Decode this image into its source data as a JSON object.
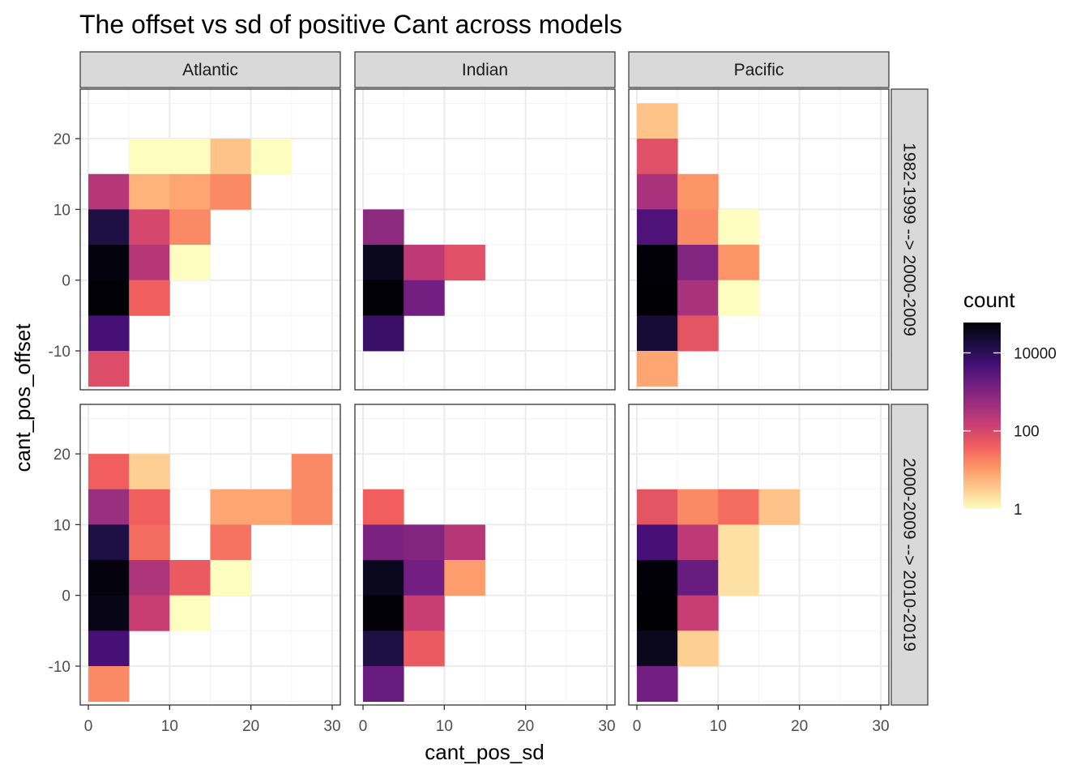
{
  "chart_data": {
    "type": "heatmap",
    "title": "The offset vs sd of positive Cant across models",
    "xlabel": "cant_pos_sd",
    "ylabel": "cant_pos_offset",
    "columns": [
      "Atlantic",
      "Indian",
      "Pacific"
    ],
    "rows": [
      "1982-1999 --> 2000-2009",
      "2000-2009 --> 2010-2019"
    ],
    "xlim": [
      -1,
      31
    ],
    "ylim": [
      -15.5,
      27
    ],
    "x_ticks": [
      0,
      10,
      20,
      30
    ],
    "y_ticks": [
      -10,
      0,
      10,
      20
    ],
    "x_tick_labels": [
      "0",
      "10",
      "20",
      "30"
    ],
    "y_tick_labels": [
      "-10",
      "0",
      "10",
      "20"
    ],
    "bin_width": 5,
    "legend": {
      "title": "count",
      "scale": "log10",
      "min": 1,
      "max": 60000,
      "breaks": [
        1,
        100,
        10000
      ],
      "break_labels": [
        "1",
        "100",
        "10000"
      ],
      "palette": [
        "#fcfdbf",
        "#feca8d",
        "#fd9668",
        "#f1605d",
        "#cd4071",
        "#9e2f7f",
        "#721f81",
        "#440f76",
        "#180f3d",
        "#000004"
      ]
    },
    "panels": [
      {
        "row": 0,
        "col": 0,
        "cells": [
          {
            "x": 0,
            "y": 10,
            "count": 250
          },
          {
            "x": 0,
            "y": 5,
            "count": 15000
          },
          {
            "x": 0,
            "y": 0,
            "count": 50000
          },
          {
            "x": 0,
            "y": -5,
            "count": 55000
          },
          {
            "x": 0,
            "y": -10,
            "count": 5000
          },
          {
            "x": 0,
            "y": -15,
            "count": 80
          },
          {
            "x": 5,
            "y": 15,
            "count": 1
          },
          {
            "x": 5,
            "y": 10,
            "count": 6
          },
          {
            "x": 5,
            "y": 5,
            "count": 100
          },
          {
            "x": 5,
            "y": 0,
            "count": 250
          },
          {
            "x": 5,
            "y": -5,
            "count": 40
          },
          {
            "x": 10,
            "y": 15,
            "count": 1
          },
          {
            "x": 10,
            "y": 10,
            "count": 8
          },
          {
            "x": 10,
            "y": 5,
            "count": 15
          },
          {
            "x": 10,
            "y": 0,
            "count": 1
          },
          {
            "x": 15,
            "y": 15,
            "count": 4
          },
          {
            "x": 15,
            "y": 10,
            "count": 15
          },
          {
            "x": 20,
            "y": 15,
            "count": 1
          }
        ]
      },
      {
        "row": 0,
        "col": 1,
        "cells": [
          {
            "x": 0,
            "y": 5,
            "count": 700
          },
          {
            "x": 0,
            "y": 0,
            "count": 35000
          },
          {
            "x": 0,
            "y": -5,
            "count": 55000
          },
          {
            "x": 0,
            "y": -10,
            "count": 7000
          },
          {
            "x": 5,
            "y": 0,
            "count": 200
          },
          {
            "x": 5,
            "y": -5,
            "count": 1500
          },
          {
            "x": 10,
            "y": 0,
            "count": 70
          }
        ]
      },
      {
        "row": 0,
        "col": 2,
        "cells": [
          {
            "x": 0,
            "y": 20,
            "count": 4
          },
          {
            "x": 0,
            "y": 15,
            "count": 70
          },
          {
            "x": 0,
            "y": 10,
            "count": 350
          },
          {
            "x": 0,
            "y": 5,
            "count": 4000
          },
          {
            "x": 0,
            "y": 0,
            "count": 55000
          },
          {
            "x": 0,
            "y": -5,
            "count": 60000
          },
          {
            "x": 0,
            "y": -10,
            "count": 20000
          },
          {
            "x": 0,
            "y": -15,
            "count": 8
          },
          {
            "x": 5,
            "y": 10,
            "count": 12
          },
          {
            "x": 5,
            "y": 5,
            "count": 15
          },
          {
            "x": 5,
            "y": 0,
            "count": 1000
          },
          {
            "x": 5,
            "y": -5,
            "count": 350
          },
          {
            "x": 5,
            "y": -10,
            "count": 60
          },
          {
            "x": 10,
            "y": 5,
            "count": 1
          },
          {
            "x": 10,
            "y": 0,
            "count": 12
          },
          {
            "x": 10,
            "y": -5,
            "count": 1
          }
        ]
      },
      {
        "row": 1,
        "col": 0,
        "cells": [
          {
            "x": 0,
            "y": 15,
            "count": 40
          },
          {
            "x": 0,
            "y": 10,
            "count": 500
          },
          {
            "x": 0,
            "y": 5,
            "count": 15000
          },
          {
            "x": 0,
            "y": 0,
            "count": 50000
          },
          {
            "x": 0,
            "y": -5,
            "count": 40000
          },
          {
            "x": 0,
            "y": -10,
            "count": 5000
          },
          {
            "x": 0,
            "y": -15,
            "count": 15
          },
          {
            "x": 5,
            "y": 15,
            "count": 3
          },
          {
            "x": 5,
            "y": 10,
            "count": 40
          },
          {
            "x": 5,
            "y": 5,
            "count": 30
          },
          {
            "x": 5,
            "y": 0,
            "count": 300
          },
          {
            "x": 5,
            "y": -5,
            "count": 150
          },
          {
            "x": 10,
            "y": 0,
            "count": 50
          },
          {
            "x": 10,
            "y": -5,
            "count": 1
          },
          {
            "x": 15,
            "y": 10,
            "count": 8
          },
          {
            "x": 15,
            "y": 5,
            "count": 25
          },
          {
            "x": 15,
            "y": 0,
            "count": 1
          },
          {
            "x": 20,
            "y": 10,
            "count": 8
          },
          {
            "x": 25,
            "y": 15,
            "count": 15
          },
          {
            "x": 25,
            "y": 10,
            "count": 15
          }
        ]
      },
      {
        "row": 1,
        "col": 1,
        "cells": [
          {
            "x": 0,
            "y": 10,
            "count": 40
          },
          {
            "x": 0,
            "y": 5,
            "count": 1200
          },
          {
            "x": 0,
            "y": 0,
            "count": 35000
          },
          {
            "x": 0,
            "y": -5,
            "count": 55000
          },
          {
            "x": 0,
            "y": -10,
            "count": 15000
          },
          {
            "x": 0,
            "y": -15,
            "count": 2000
          },
          {
            "x": 5,
            "y": 5,
            "count": 1000
          },
          {
            "x": 5,
            "y": 0,
            "count": 1500
          },
          {
            "x": 5,
            "y": -5,
            "count": 150
          },
          {
            "x": 5,
            "y": -10,
            "count": 50
          },
          {
            "x": 10,
            "y": 5,
            "count": 250
          },
          {
            "x": 10,
            "y": 0,
            "count": 10
          }
        ]
      },
      {
        "row": 1,
        "col": 2,
        "cells": [
          {
            "x": 0,
            "y": 10,
            "count": 60
          },
          {
            "x": 0,
            "y": 5,
            "count": 5000
          },
          {
            "x": 0,
            "y": 0,
            "count": 55000
          },
          {
            "x": 0,
            "y": -5,
            "count": 60000
          },
          {
            "x": 0,
            "y": -10,
            "count": 35000
          },
          {
            "x": 0,
            "y": -15,
            "count": 1500
          },
          {
            "x": 5,
            "y": 10,
            "count": 15
          },
          {
            "x": 5,
            "y": 5,
            "count": 200
          },
          {
            "x": 5,
            "y": 0,
            "count": 2000
          },
          {
            "x": 5,
            "y": -5,
            "count": 150
          },
          {
            "x": 5,
            "y": -10,
            "count": 3
          },
          {
            "x": 10,
            "y": 10,
            "count": 30
          },
          {
            "x": 10,
            "y": 5,
            "count": 2
          },
          {
            "x": 10,
            "y": 0,
            "count": 2
          },
          {
            "x": 15,
            "y": 10,
            "count": 4
          }
        ]
      }
    ]
  }
}
